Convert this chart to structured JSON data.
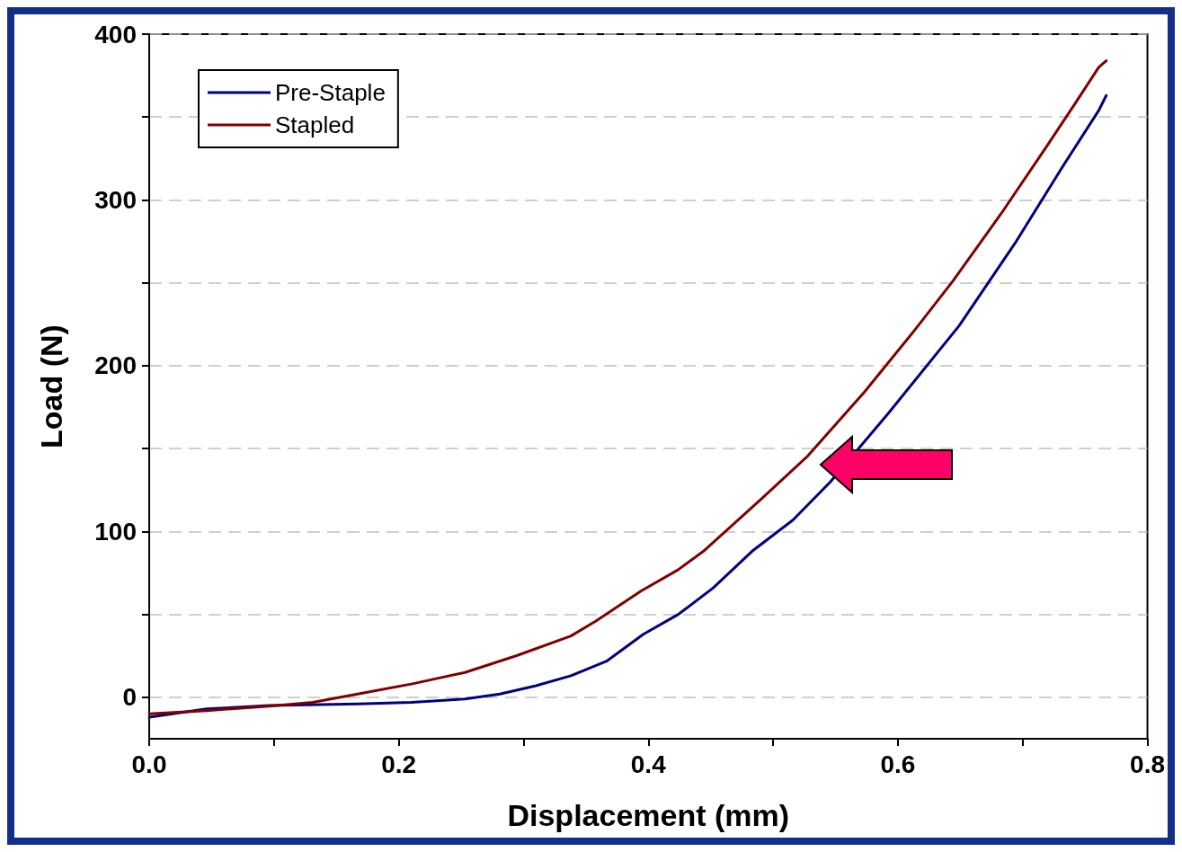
{
  "chart_data": {
    "type": "line",
    "xlabel": "Displacement (mm)",
    "ylabel": "Load (N)",
    "xlim": [
      0,
      0.8
    ],
    "ylim": [
      -25,
      400
    ],
    "xticks": [
      {
        "value": 0,
        "label": "0.0"
      },
      {
        "value": 0.1,
        "label": null
      },
      {
        "value": 0.2,
        "label": "0.2"
      },
      {
        "value": 0.3,
        "label": null
      },
      {
        "value": 0.4,
        "label": "0.4"
      },
      {
        "value": 0.5,
        "label": null
      },
      {
        "value": 0.6,
        "label": "0.6"
      },
      {
        "value": 0.7,
        "label": null
      },
      {
        "value": 0.8,
        "label": "0.8"
      }
    ],
    "yticks": [
      0,
      {
        "value": 50,
        "label": null
      },
      100,
      {
        "value": 150,
        "label": null
      },
      200,
      {
        "value": 250,
        "label": null
      },
      300,
      {
        "value": 350,
        "label": null
      },
      400
    ],
    "grid": "y",
    "legend": "top left",
    "marker": "none",
    "line_style": "solid",
    "series": [
      {
        "name": "Pre-Staple",
        "color": "#000080",
        "x": [
          0,
          0.046,
          0.096,
          0.167,
          0.21,
          0.253,
          0.281,
          0.31,
          0.338,
          0.367,
          0.396,
          0.424,
          0.452,
          0.483,
          0.516,
          0.546,
          0.592,
          0.649,
          0.694,
          0.732,
          0.761,
          0.767
        ],
        "values": [
          -12,
          -7,
          -5,
          -4,
          -3,
          -1,
          2,
          7,
          13,
          22,
          38,
          50,
          66,
          88,
          107,
          130,
          171,
          224,
          274,
          320,
          354,
          363
        ]
      },
      {
        "name": "Stapled",
        "color": "#800000",
        "x": [
          0,
          0.046,
          0.096,
          0.131,
          0.167,
          0.21,
          0.253,
          0.294,
          0.338,
          0.358,
          0.394,
          0.424,
          0.444,
          0.491,
          0.527,
          0.573,
          0.614,
          0.644,
          0.683,
          0.719,
          0.741,
          0.761,
          0.767
        ],
        "values": [
          -10,
          -8,
          -5.4,
          -3,
          2,
          8,
          15,
          25,
          37,
          46,
          64,
          77,
          88,
          120,
          145,
          184,
          222,
          251,
          292,
          332,
          357,
          380,
          384
        ]
      }
    ]
  }
}
